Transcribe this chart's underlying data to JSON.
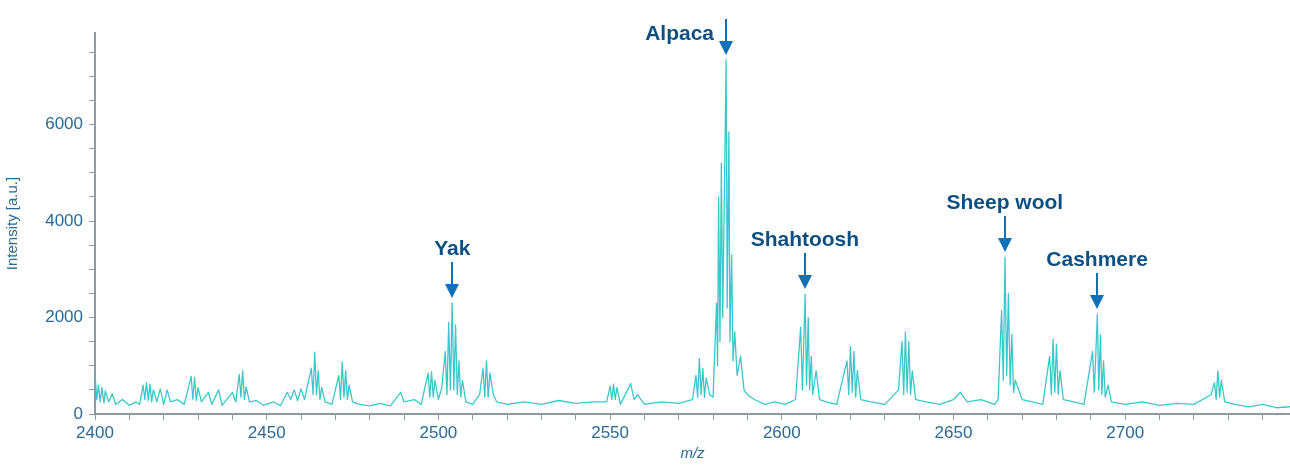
{
  "chart_data": {
    "type": "line",
    "xlabel": "m/z",
    "ylabel": "Intensity [a.u.]",
    "xlim": [
      2400,
      2748
    ],
    "xticks": [
      2400,
      {
        "value": 2410,
        "label": null
      },
      {
        "value": 2420,
        "label": null
      },
      {
        "value": 2430,
        "label": null
      },
      {
        "value": 2440,
        "label": null
      },
      2450,
      {
        "value": 2460,
        "label": null
      },
      {
        "value": 2470,
        "label": null
      },
      {
        "value": 2480,
        "label": null
      },
      {
        "value": 2490,
        "label": null
      },
      2500,
      {
        "value": 2510,
        "label": null
      },
      {
        "value": 2520,
        "label": null
      },
      {
        "value": 2530,
        "label": null
      },
      {
        "value": 2540,
        "label": null
      },
      2550,
      {
        "value": 2560,
        "label": null
      },
      {
        "value": 2570,
        "label": null
      },
      {
        "value": 2580,
        "label": null
      },
      {
        "value": 2590,
        "label": null
      },
      2600,
      {
        "value": 2610,
        "label": null
      },
      {
        "value": 2620,
        "label": null
      },
      {
        "value": 2630,
        "label": null
      },
      {
        "value": 2640,
        "label": null
      },
      2650,
      {
        "value": 2660,
        "label": null
      },
      {
        "value": 2670,
        "label": null
      },
      {
        "value": 2680,
        "label": null
      },
      {
        "value": 2690,
        "label": null
      },
      2700,
      {
        "value": 2710,
        "label": null
      },
      {
        "value": 2720,
        "label": null
      },
      {
        "value": 2730,
        "label": null
      },
      {
        "value": 2740,
        "label": null
      }
    ],
    "ylim": [
      0,
      7900
    ],
    "yticks": [
      0,
      {
        "value": 500,
        "label": null
      },
      {
        "value": 1000,
        "label": null
      },
      {
        "value": 1500,
        "label": null
      },
      2000,
      {
        "value": 2500,
        "label": null
      },
      {
        "value": 3000,
        "label": null
      },
      {
        "value": 3500,
        "label": null
      },
      4000,
      {
        "value": 4500,
        "label": null
      },
      {
        "value": 5000,
        "label": null
      },
      {
        "value": 5500,
        "label": null
      },
      6000,
      {
        "value": 6500,
        "label": null
      },
      {
        "value": 7000,
        "label": null
      },
      {
        "value": 7500,
        "label": null
      }
    ],
    "grid": false,
    "legend": false,
    "marker": "none",
    "line_style": "solid",
    "series": [
      {
        "color": "#3cc8c8",
        "x": [
          2400,
          2400.5,
          2401,
          2401.5,
          2402,
          2402.6,
          2403,
          2404,
          2405,
          2406,
          2408,
          2410,
          2412,
          2413,
          2414,
          2414.5,
          2415,
          2415.5,
          2416,
          2416.5,
          2417,
          2418,
          2419,
          2420,
          2421,
          2422,
          2424,
          2426,
          2428,
          2428.5,
          2429,
          2429.5,
          2430,
          2431,
          2433,
          2434,
          2436,
          2437,
          2440,
          2441,
          2442,
          2442.5,
          2443,
          2443.5,
          2444,
          2445,
          2447,
          2449,
          2452,
          2454,
          2456,
          2457,
          2458,
          2459,
          2460,
          2461,
          2463,
          2463.5,
          2464,
          2464.5,
          2465,
          2465.5,
          2466,
          2467,
          2469,
          2471,
          2471.5,
          2472,
          2472.5,
          2473,
          2473.5,
          2474,
          2475,
          2477,
          2480,
          2483,
          2486,
          2489,
          2490,
          2493,
          2495,
          2497,
          2497.5,
          2498,
          2498.5,
          2499,
          2500,
          2501,
          2502,
          2502.5,
          2503,
          2503.5,
          2504,
          2504.5,
          2505,
          2505.5,
          2506,
          2506.5,
          2507,
          2508,
          2510,
          2512,
          2513,
          2513.5,
          2514,
          2514.5,
          2515,
          2516,
          2517,
          2520,
          2525,
          2530,
          2535,
          2540,
          2545,
          2549,
          2550,
          2550.5,
          2551,
          2551.5,
          2552,
          2553,
          2556,
          2557,
          2558,
          2560,
          2565,
          2570,
          2574,
          2575,
          2575.5,
          2576,
          2576.5,
          2577,
          2577.5,
          2578,
          2579,
          2580,
          2581,
          2581.3,
          2581.6,
          2582,
          2582.4,
          2582.8,
          2583.8,
          2584.1,
          2584.6,
          2584.9,
          2585.4,
          2585.8,
          2586.3,
          2587,
          2588,
          2589,
          2590,
          2592,
          2595,
          2598,
          2601,
          2604,
          2605.5,
          2606,
          2606.8,
          2607.2,
          2607.7,
          2608.1,
          2608.6,
          2609,
          2610,
          2611,
          2613,
          2616,
          2619,
          2619.5,
          2620,
          2620.5,
          2621,
          2621.5,
          2622,
          2623,
          2626,
          2630,
          2634,
          2635,
          2635.5,
          2636,
          2636.5,
          2637,
          2637.5,
          2638,
          2639,
          2642,
          2646,
          2650,
          2652,
          2654,
          2658,
          2662,
          2663,
          2664,
          2664.5,
          2665,
          2665.5,
          2666,
          2666.5,
          2667,
          2667.5,
          2668,
          2670,
          2673,
          2676,
          2678,
          2678.5,
          2679,
          2679.5,
          2680,
          2680.5,
          2681,
          2682,
          2685,
          2688,
          2690.5,
          2691,
          2691.9,
          2692.3,
          2692.8,
          2693.2,
          2693.7,
          2694.2,
          2695,
          2696,
          2700,
          2705,
          2710,
          2715,
          2720,
          2725,
          2726,
          2726.5,
          2727,
          2727.5,
          2728,
          2729,
          2732,
          2736,
          2740,
          2744,
          2748
        ],
        "values": [
          850,
          300,
          600,
          250,
          550,
          230,
          480,
          250,
          420,
          200,
          300,
          180,
          250,
          200,
          600,
          300,
          650,
          280,
          620,
          250,
          500,
          250,
          520,
          200,
          500,
          250,
          300,
          200,
          780,
          300,
          760,
          280,
          550,
          250,
          450,
          200,
          500,
          180,
          450,
          250,
          820,
          350,
          900,
          300,
          560,
          250,
          280,
          180,
          250,
          170,
          450,
          300,
          500,
          280,
          520,
          300,
          950,
          400,
          1280,
          400,
          900,
          300,
          550,
          250,
          200,
          800,
          300,
          1080,
          350,
          900,
          300,
          600,
          250,
          200,
          170,
          220,
          170,
          450,
          250,
          300,
          200,
          850,
          350,
          880,
          350,
          700,
          300,
          550,
          1300,
          400,
          1900,
          500,
          2300,
          500,
          1850,
          400,
          1100,
          350,
          700,
          250,
          200,
          400,
          950,
          350,
          1100,
          350,
          850,
          400,
          250,
          200,
          250,
          200,
          280,
          220,
          250,
          250,
          580,
          300,
          620,
          300,
          550,
          200,
          630,
          300,
          400,
          200,
          250,
          220,
          300,
          800,
          350,
          1150,
          400,
          950,
          350,
          750,
          400,
          350,
          2300,
          1000,
          4500,
          1500,
          5200,
          2000,
          7350,
          2200,
          5850,
          1500,
          3300,
          1100,
          1700,
          800,
          1200,
          500,
          400,
          300,
          200,
          250,
          200,
          300,
          1800,
          500,
          2480,
          600,
          2000,
          500,
          1200,
          400,
          900,
          300,
          250,
          200,
          1100,
          400,
          1400,
          450,
          1300,
          350,
          900,
          300,
          250,
          200,
          500,
          1500,
          400,
          1700,
          450,
          1500,
          400,
          900,
          300,
          250,
          200,
          300,
          450,
          250,
          300,
          200,
          300,
          2150,
          700,
          3250,
          800,
          2500,
          600,
          1650,
          450,
          700,
          300,
          250,
          200,
          1200,
          400,
          1550,
          450,
          1450,
          400,
          900,
          300,
          250,
          200,
          1300,
          450,
          2070,
          500,
          1650,
          400,
          1100,
          350,
          600,
          250,
          200,
          250,
          180,
          220,
          200,
          400,
          650,
          300,
          900,
          350,
          700,
          250,
          200,
          150,
          200,
          130,
          150
        ]
      }
    ],
    "annotations": [
      {
        "text": "Yak",
        "x": 2504,
        "y": 2300
      },
      {
        "text": "Alpaca",
        "x": 2583.8,
        "y": 7350
      },
      {
        "text": "Shahtoosh",
        "x": 2606.8,
        "y": 2480
      },
      {
        "text": "Sheep wool",
        "x": 2665,
        "y": 3250
      },
      {
        "text": "Cashmere",
        "x": 2691.9,
        "y": 2070
      }
    ]
  }
}
